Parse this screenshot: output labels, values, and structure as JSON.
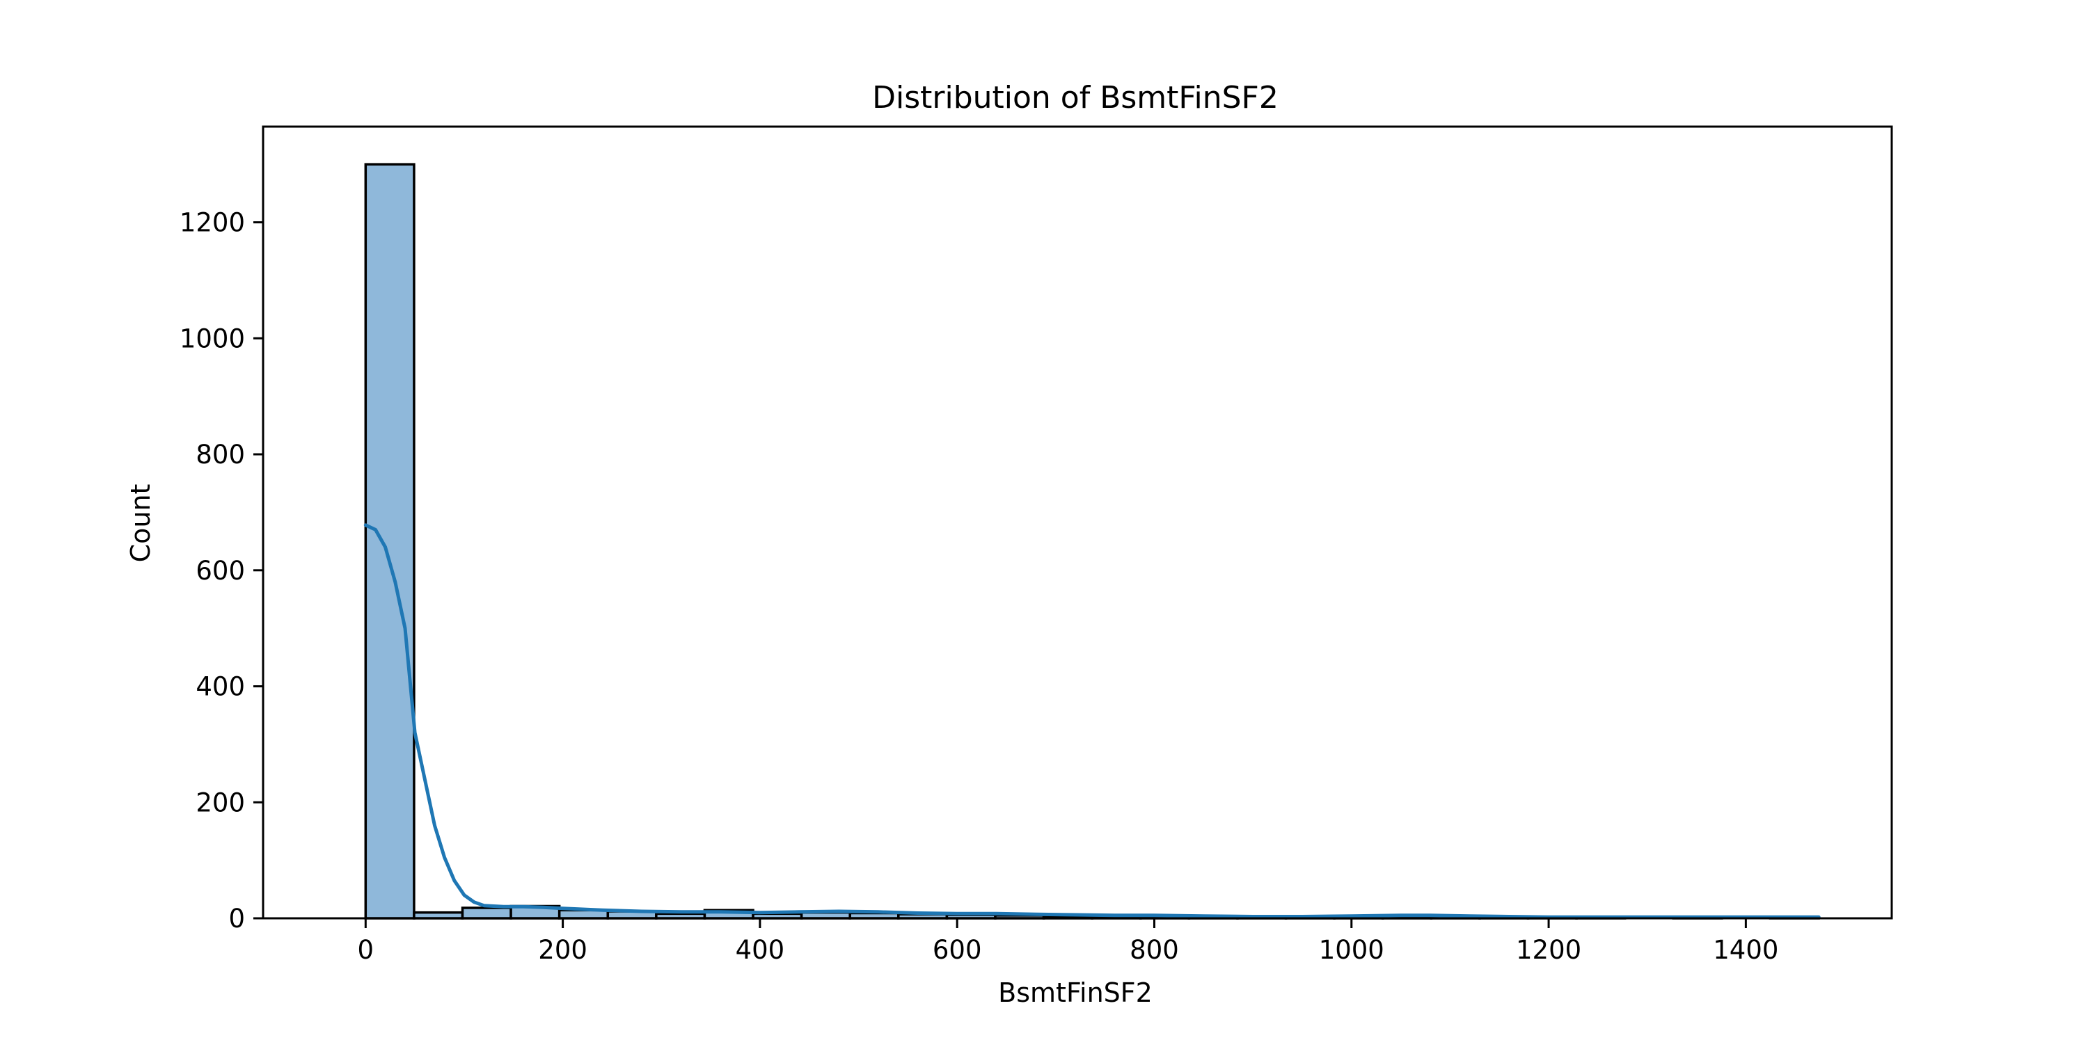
{
  "chart_data": {
    "type": "bar",
    "title": "Distribution of BsmtFinSF2",
    "xlabel": "BsmtFinSF2",
    "ylabel": "Count",
    "xlim": [
      -104,
      1548
    ],
    "ylim": [
      0,
      1365
    ],
    "bin_width": 49.13,
    "bin_edges_start": 0,
    "x_ticks": [
      0,
      200,
      400,
      600,
      800,
      1000,
      1200,
      1400
    ],
    "y_ticks": [
      0,
      200,
      400,
      600,
      800,
      1000,
      1200
    ],
    "bins": [
      {
        "x0": 0,
        "x1": 49,
        "count": 1300
      },
      {
        "x0": 49,
        "x1": 98,
        "count": 10
      },
      {
        "x0": 98,
        "x1": 147,
        "count": 18
      },
      {
        "x0": 147,
        "x1": 197,
        "count": 21
      },
      {
        "x0": 197,
        "x1": 246,
        "count": 14
      },
      {
        "x0": 246,
        "x1": 295,
        "count": 12
      },
      {
        "x0": 295,
        "x1": 344,
        "count": 8
      },
      {
        "x0": 344,
        "x1": 393,
        "count": 14
      },
      {
        "x0": 393,
        "x1": 442,
        "count": 8
      },
      {
        "x0": 442,
        "x1": 491,
        "count": 10
      },
      {
        "x0": 491,
        "x1": 540,
        "count": 9
      },
      {
        "x0": 540,
        "x1": 590,
        "count": 7
      },
      {
        "x0": 590,
        "x1": 639,
        "count": 6
      },
      {
        "x0": 639,
        "x1": 688,
        "count": 5
      },
      {
        "x0": 688,
        "x1": 737,
        "count": 4
      },
      {
        "x0": 737,
        "x1": 786,
        "count": 3
      },
      {
        "x0": 786,
        "x1": 835,
        "count": 3
      },
      {
        "x0": 835,
        "x1": 884,
        "count": 2
      },
      {
        "x0": 884,
        "x1": 934,
        "count": 2
      },
      {
        "x0": 934,
        "x1": 983,
        "count": 2
      },
      {
        "x0": 983,
        "x1": 1032,
        "count": 3
      },
      {
        "x0": 1032,
        "x1": 1081,
        "count": 4
      },
      {
        "x0": 1081,
        "x1": 1130,
        "count": 2
      },
      {
        "x0": 1130,
        "x1": 1179,
        "count": 1
      },
      {
        "x0": 1179,
        "x1": 1228,
        "count": 1
      },
      {
        "x0": 1228,
        "x1": 1277,
        "count": 1
      },
      {
        "x0": 1277,
        "x1": 1327,
        "count": 0
      },
      {
        "x0": 1327,
        "x1": 1376,
        "count": 1
      },
      {
        "x0": 1376,
        "x1": 1425,
        "count": 0
      },
      {
        "x0": 1425,
        "x1": 1474,
        "count": 1
      }
    ],
    "kde_points": [
      [
        0,
        678
      ],
      [
        10,
        670
      ],
      [
        20,
        640
      ],
      [
        30,
        580
      ],
      [
        40,
        500
      ],
      [
        50,
        320
      ],
      [
        60,
        240
      ],
      [
        70,
        160
      ],
      [
        80,
        105
      ],
      [
        90,
        65
      ],
      [
        100,
        40
      ],
      [
        110,
        28
      ],
      [
        120,
        22
      ],
      [
        140,
        20
      ],
      [
        160,
        20
      ],
      [
        180,
        19
      ],
      [
        200,
        17
      ],
      [
        240,
        14
      ],
      [
        280,
        12
      ],
      [
        320,
        11
      ],
      [
        360,
        11
      ],
      [
        400,
        10
      ],
      [
        440,
        11
      ],
      [
        480,
        12
      ],
      [
        520,
        11
      ],
      [
        560,
        9
      ],
      [
        600,
        8
      ],
      [
        640,
        8
      ],
      [
        680,
        7
      ],
      [
        720,
        6
      ],
      [
        760,
        5
      ],
      [
        800,
        5
      ],
      [
        850,
        4
      ],
      [
        900,
        3
      ],
      [
        950,
        3
      ],
      [
        1000,
        4
      ],
      [
        1050,
        5
      ],
      [
        1080,
        5
      ],
      [
        1120,
        4
      ],
      [
        1160,
        3
      ],
      [
        1200,
        2
      ],
      [
        1260,
        2
      ],
      [
        1320,
        2
      ],
      [
        1380,
        2
      ],
      [
        1440,
        2
      ],
      [
        1474,
        2
      ]
    ],
    "colors": {
      "bar_fill": "#8FB8DA",
      "bar_edge": "#000000",
      "kde_line": "#1F77B4",
      "axes": "#000000"
    },
    "grid": false,
    "legend": "none"
  }
}
